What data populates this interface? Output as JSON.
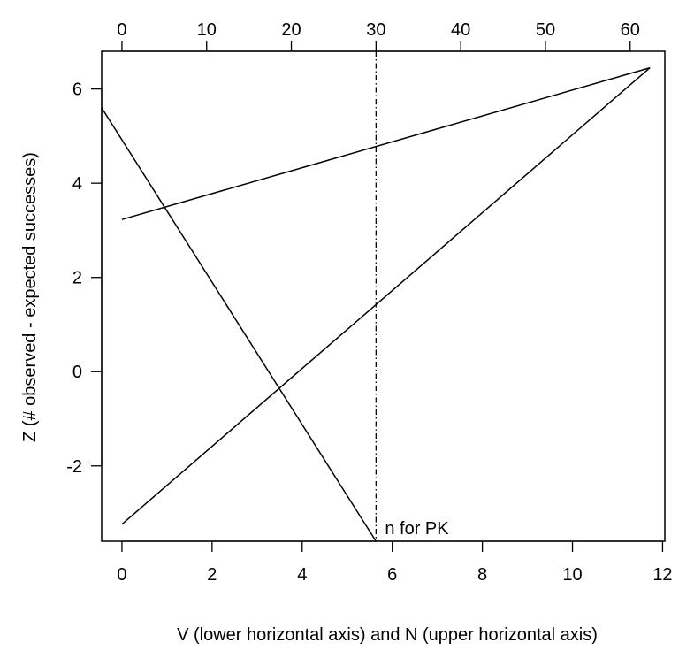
{
  "chart_data": {
    "type": "line",
    "title": "",
    "xlabel": "V (lower horizontal axis) and N (upper horizontal axis)",
    "ylabel": "Z (# observed  - expected successes)",
    "xlim": [
      -0.45,
      12.05
    ],
    "ylim": [
      -3.6,
      6.8
    ],
    "x_ticks": [
      0,
      2,
      4,
      6,
      8,
      10,
      12
    ],
    "x_tick_labels": [
      "0",
      "2",
      "4",
      "6",
      "8",
      "10",
      "12"
    ],
    "y_ticks": [
      -2,
      0,
      2,
      4,
      6
    ],
    "y_tick_labels": [
      "-2",
      "0",
      "2",
      "4",
      "6"
    ],
    "upper_axis": {
      "label_values": [
        0,
        10,
        20,
        30,
        40,
        50,
        60
      ],
      "tick_labels": [
        "0",
        "10",
        "20",
        "30",
        "40",
        "50",
        "60"
      ],
      "positions_in_V": [
        0,
        1.88,
        3.76,
        5.64,
        7.52,
        9.4,
        11.28
      ]
    },
    "grid": false,
    "series": [
      {
        "x": [
          0,
          11.72
        ],
        "y": [
          3.23,
          6.45
        ]
      },
      {
        "x": [
          0,
          11.72
        ],
        "y": [
          -3.24,
          6.45
        ]
      },
      {
        "x": [
          -0.45,
          5.64
        ],
        "y": [
          5.6,
          -3.6
        ]
      }
    ],
    "reference_line": {
      "x": 5.64,
      "style": "dashed"
    },
    "annotation": {
      "text": "n for PK",
      "x": 5.64,
      "y": -3.6
    },
    "colors": {
      "line": "#000000",
      "background": "#ffffff"
    }
  }
}
